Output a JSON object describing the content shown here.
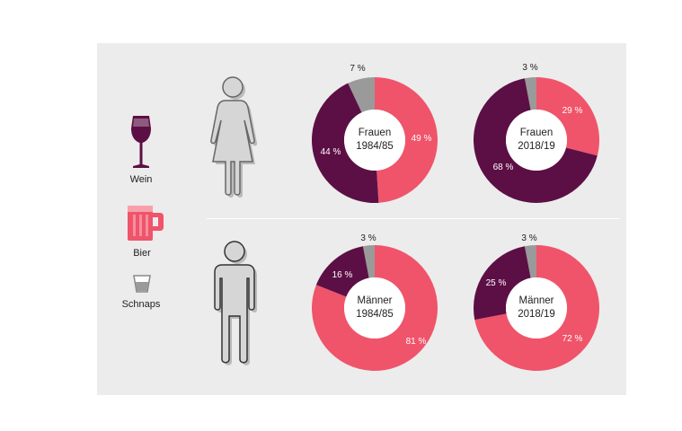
{
  "legend": [
    {
      "label": "Wein",
      "icon": "wine-glass-icon",
      "color": "#5c0f45"
    },
    {
      "label": "Bier",
      "icon": "beer-mug-icon",
      "color": "#f0546a"
    },
    {
      "label": "Schnaps",
      "icon": "shot-glass-icon",
      "color": "#9a9a9a"
    }
  ],
  "colors": {
    "wein": "#5c0f45",
    "bier": "#f0546a",
    "schnaps": "#9a9a9a",
    "panel": "#ececec"
  },
  "figures": [
    {
      "icon": "female-figure-icon"
    },
    {
      "icon": "male-figure-icon"
    }
  ],
  "chart_data": [
    {
      "type": "pie",
      "center_line1": "Frauen",
      "center_line2": "1984/85",
      "series": [
        {
          "label": "Schnaps",
          "value": 7
        },
        {
          "label": "Bier",
          "value": 49
        },
        {
          "label": "Wein",
          "value": 44
        }
      ],
      "labels": [
        "7 %",
        "49 %",
        "44 %"
      ]
    },
    {
      "type": "pie",
      "center_line1": "Frauen",
      "center_line2": "2018/19",
      "series": [
        {
          "label": "Schnaps",
          "value": 3
        },
        {
          "label": "Bier",
          "value": 29
        },
        {
          "label": "Wein",
          "value": 68
        }
      ],
      "labels": [
        "3 %",
        "29 %",
        "68 %"
      ]
    },
    {
      "type": "pie",
      "center_line1": "Männer",
      "center_line2": "1984/85",
      "series": [
        {
          "label": "Schnaps",
          "value": 3
        },
        {
          "label": "Bier",
          "value": 81
        },
        {
          "label": "Wein",
          "value": 16
        }
      ],
      "labels": [
        "3 %",
        "81 %",
        "16 %"
      ]
    },
    {
      "type": "pie",
      "center_line1": "Männer",
      "center_line2": "2018/19",
      "series": [
        {
          "label": "Schnaps",
          "value": 3
        },
        {
          "label": "Bier",
          "value": 72
        },
        {
          "label": "Wein",
          "value": 25
        }
      ],
      "labels": [
        "3 %",
        "72 %",
        "25 %"
      ]
    }
  ]
}
